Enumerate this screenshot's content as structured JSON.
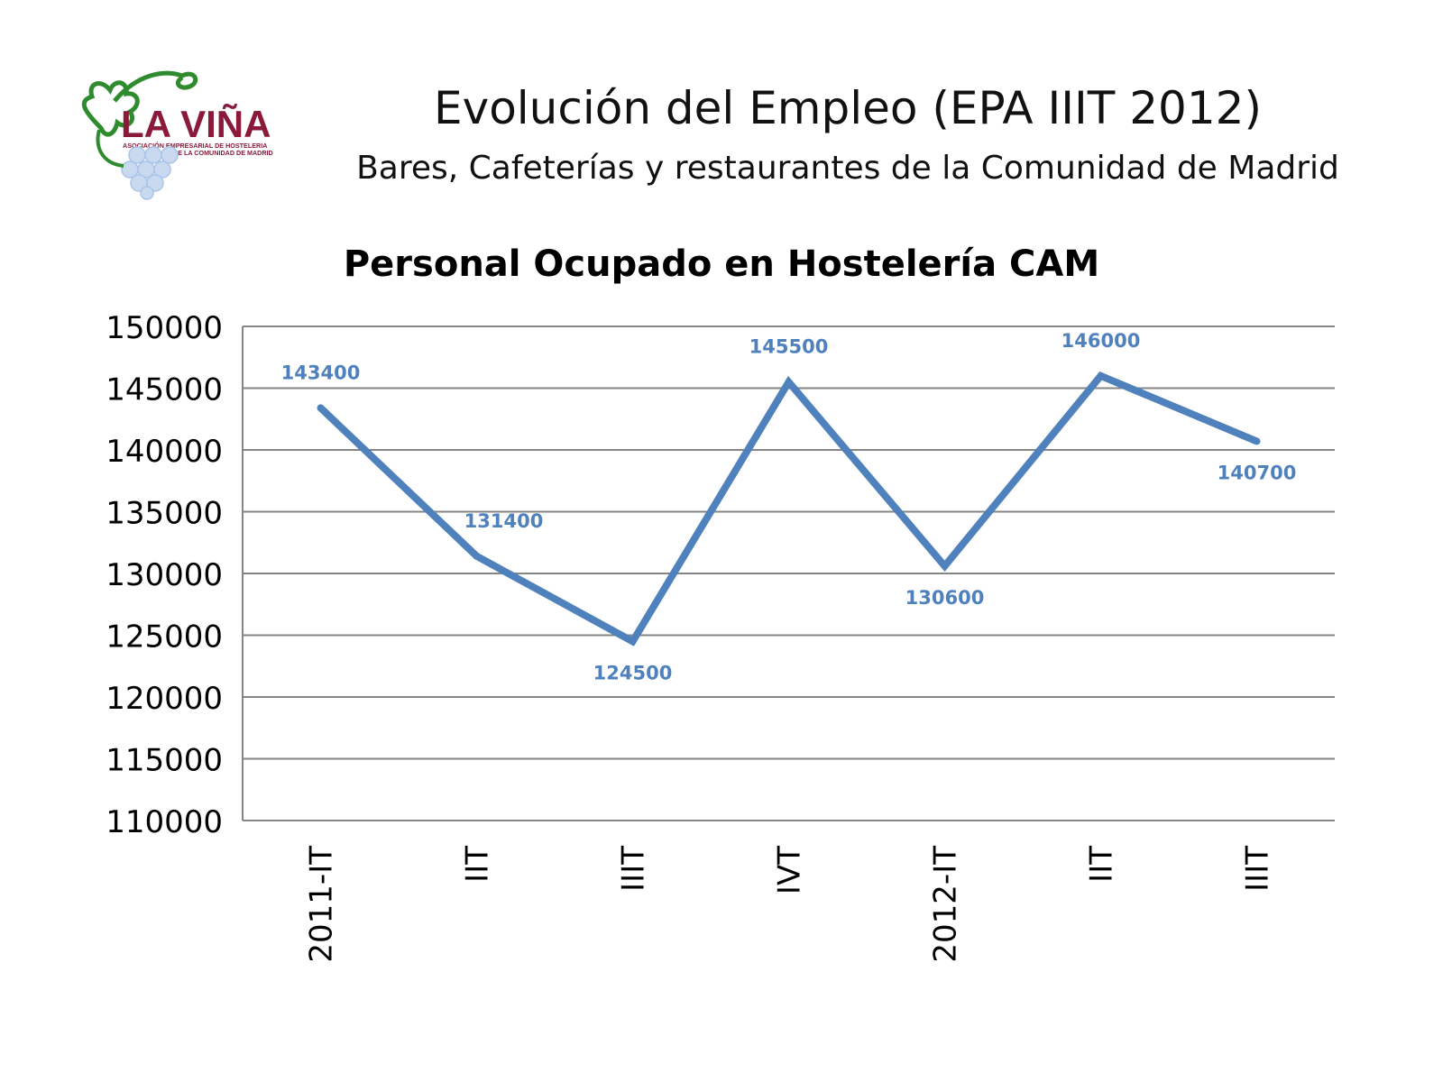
{
  "header": {
    "title": "Evolución del Empleo (EPA IIIT 2012)",
    "subtitle": "Bares, Cafeterías y restaurantes de la Comunidad de Madrid"
  },
  "logo": {
    "name": "LA VIÑA",
    "tagline_line1": "ASOCIACIÓN EMPRESARIAL DE HOSTELERIA",
    "tagline_line2": "DE LA COMUNIDAD DE MADRID"
  },
  "colors": {
    "series": "#4F81BD",
    "label": "#4F81BD",
    "grid": "#868686",
    "logo_text": "#8B1A3A",
    "logo_vine": "#2E8B2E",
    "logo_grapes": "#A9C4E8"
  },
  "chart_data": {
    "type": "line",
    "title": "Personal Ocupado en Hostelería CAM",
    "categories": [
      "2011-IT",
      "IIT",
      "IIIT",
      "IVT",
      "2012-IT",
      "IIT",
      "IIIT"
    ],
    "series": [
      {
        "values": [
          143400,
          131400,
          124500,
          145500,
          130600,
          146000,
          140700
        ]
      }
    ],
    "data_labels": [
      "143400",
      "131400",
      "124500",
      "145500",
      "130600",
      "146000",
      "140700"
    ],
    "label_positions": [
      "above",
      "above",
      "below",
      "above",
      "below",
      "above",
      "below"
    ],
    "ylim": [
      110000,
      150000
    ],
    "yticks": [
      "110000",
      "115000",
      "120000",
      "125000",
      "130000",
      "135000",
      "140000",
      "145000",
      "150000"
    ],
    "grid": true,
    "legend": false
  }
}
